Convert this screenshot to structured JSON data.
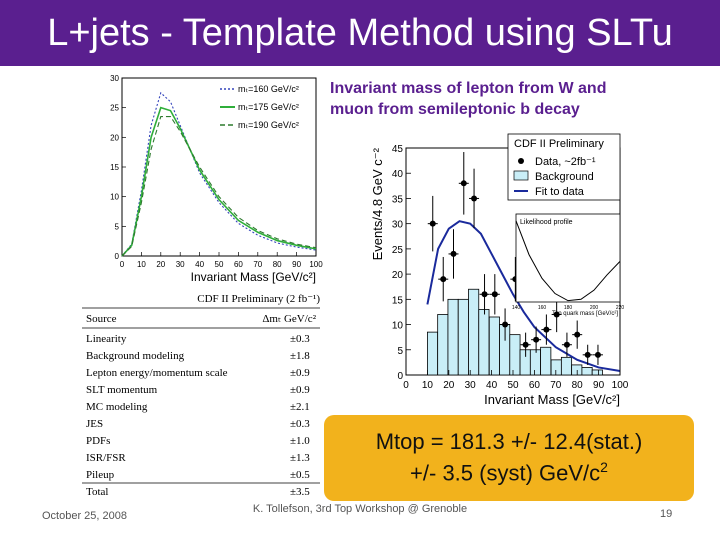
{
  "slide": {
    "title": "L+jets - Template Method using SLTu",
    "caption": "Invariant mass of lepton from W and muon from semileptonic b decay",
    "result_line1": "Mtop = 181.3 +/- 12.4(stat.)",
    "result_line2": "+/- 3.5 (syst) GeV/c",
    "result_sup": "2",
    "footer_date": "October 25, 2008",
    "footer_center": "K. Tollefson, 3rd Top Workshop @ Grenoble",
    "page_number": "19",
    "colors": {
      "title_bg": "#5a1f8f",
      "result_bg": "#f2b21c",
      "caption": "#5a1f8f"
    }
  },
  "chart_data": [
    {
      "type": "line",
      "xlabel": "Invariant Mass [GeV/c²]",
      "ylabel": "",
      "xlim": [
        0,
        100
      ],
      "ylim": [
        0,
        30
      ],
      "x_ticks": [
        "0",
        "10",
        "20",
        "30",
        "40",
        "50",
        "60",
        "70",
        "80",
        "90",
        "100"
      ],
      "y_ticks": [
        "0",
        "5",
        "10",
        "15",
        "20",
        "25",
        "30"
      ],
      "legend": [
        "mₜ=160 GeV/c²",
        "mₜ=175 GeV/c²",
        "mₜ=190 GeV/c²"
      ],
      "legend_position": "top-right",
      "series": [
        {
          "name": "mₜ=160 GeV/c²",
          "x": [
            0,
            5,
            10,
            15,
            20,
            25,
            30,
            35,
            40,
            50,
            60,
            70,
            80,
            90,
            100
          ],
          "values": [
            0,
            2,
            11,
            22,
            27.5,
            26,
            22,
            18,
            14,
            9,
            5.5,
            3.5,
            2.2,
            1.5,
            1.0
          ]
        },
        {
          "name": "mₜ=175 GeV/c²",
          "x": [
            0,
            5,
            10,
            15,
            20,
            25,
            30,
            35,
            40,
            50,
            60,
            70,
            80,
            90,
            100
          ],
          "values": [
            0,
            1.8,
            10,
            20,
            25,
            24.5,
            21.5,
            18,
            14.5,
            9.5,
            6,
            4,
            2.6,
            1.8,
            1.2
          ]
        },
        {
          "name": "mₜ=190 GeV/c²",
          "x": [
            0,
            5,
            10,
            15,
            20,
            25,
            30,
            35,
            40,
            50,
            60,
            70,
            80,
            90,
            100
          ],
          "values": [
            0,
            1.6,
            9,
            18,
            23.5,
            23.5,
            21,
            18,
            15,
            10,
            6.5,
            4.3,
            2.9,
            2.0,
            1.4
          ]
        }
      ]
    },
    {
      "type": "table",
      "title": "CDF II Preliminary (2 fb⁻¹)",
      "headers": [
        "Source",
        "Δmₜ GeV/c²"
      ],
      "rows": [
        [
          "Linearity",
          "±0.3"
        ],
        [
          "Background modeling",
          "±1.8"
        ],
        [
          "Lepton energy/momentum scale",
          "±0.9"
        ],
        [
          "SLT momentum",
          "±0.9"
        ],
        [
          "MC modeling",
          "±2.1"
        ],
        [
          "JES",
          "±0.3"
        ],
        [
          "PDFs",
          "±1.0"
        ],
        [
          "ISR/FSR",
          "±1.3"
        ],
        [
          "Pileup",
          "±0.5"
        ],
        [
          "Total",
          "±3.5"
        ]
      ]
    },
    {
      "type": "bar",
      "title": "CDF II Preliminary",
      "xlabel": "Invariant Mass [GeV/c²]",
      "ylabel": "Events/4.8 GeV c⁻²",
      "xlim": [
        0,
        100
      ],
      "ylim": [
        0,
        45
      ],
      "x_ticks": [
        "0",
        "10",
        "20",
        "30",
        "40",
        "50",
        "60",
        "70",
        "80",
        "90",
        "100"
      ],
      "y_ticks": [
        "0",
        "5",
        "10",
        "15",
        "20",
        "25",
        "30",
        "35",
        "40",
        "45"
      ],
      "legend": [
        "Data, ~2fb⁻¹",
        "Background",
        "Fit to data"
      ],
      "legend_position": "top-right",
      "data_points": {
        "name": "Data, ~2fb⁻¹",
        "x": [
          12.5,
          17.4,
          22.2,
          27.0,
          31.8,
          36.7,
          41.5,
          46.3,
          51.1,
          55.9,
          60.8,
          65.6,
          70.4,
          75.2,
          80.0,
          84.9,
          89.7
        ],
        "values": [
          30,
          19,
          24,
          38,
          35,
          16,
          16,
          10,
          19,
          6,
          7,
          9,
          12,
          6,
          8,
          4,
          4
        ],
        "errors": [
          5.5,
          4.4,
          4.9,
          6.2,
          5.9,
          4.0,
          4.0,
          3.2,
          4.4,
          2.4,
          2.6,
          3.0,
          3.5,
          2.4,
          2.8,
          2.0,
          2.0
        ]
      },
      "background": {
        "name": "Background",
        "bin_starts": [
          10.0,
          14.8,
          19.6,
          24.4,
          29.2,
          34.0,
          38.9,
          43.7,
          48.5,
          53.3,
          58.1,
          62.9,
          67.8,
          72.6,
          77.4,
          82.2,
          87.0
        ],
        "values": [
          8.5,
          12,
          15,
          15,
          17,
          13,
          11.5,
          10,
          8,
          5,
          5,
          5.5,
          3,
          3.5,
          2,
          1.5,
          1
        ]
      },
      "fit": {
        "name": "Fit to data",
        "x": [
          10,
          15,
          20,
          25,
          30,
          35,
          40,
          45,
          50,
          55,
          60,
          70,
          80,
          90,
          100
        ],
        "values": [
          14,
          25,
          29,
          30.5,
          30,
          28,
          24,
          20,
          16,
          12.5,
          9.5,
          5.5,
          3,
          1.5,
          0.8
        ]
      }
    },
    {
      "type": "line",
      "title": "Likelihood profile",
      "xlabel": "Top quark mass [GeV/c²]",
      "xlim": [
        140,
        220
      ],
      "x_ticks": [
        "140",
        "160",
        "180",
        "200",
        "220"
      ],
      "series": [
        {
          "name": "",
          "x": [
            140,
            150,
            160,
            170,
            180,
            190,
            200,
            210,
            220
          ],
          "values": [
            24,
            14,
            7,
            2.5,
            0.4,
            0.8,
            3.5,
            8,
            12
          ]
        }
      ]
    }
  ]
}
